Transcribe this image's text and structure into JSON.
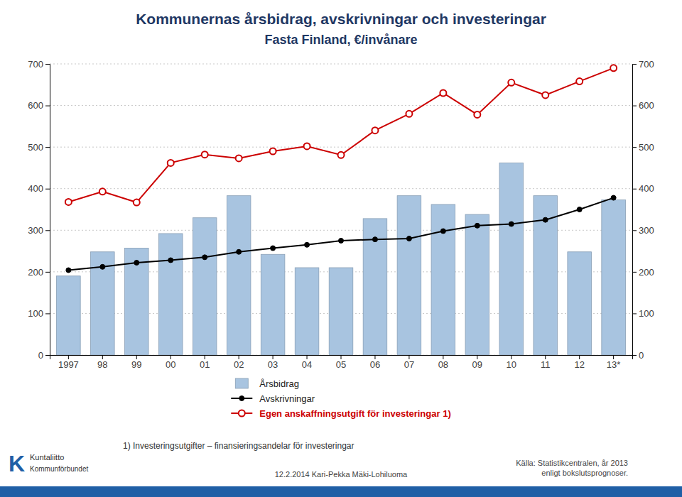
{
  "chart_data": {
    "type": "bar",
    "title": "Kommunernas årsbidrag, avskrivningar och investeringar",
    "subtitle": "Fasta Finland, €/invånare",
    "categories": [
      "1997",
      "98",
      "99",
      "00",
      "01",
      "02",
      "03",
      "04",
      "05",
      "06",
      "07",
      "08",
      "09",
      "10",
      "11",
      "12",
      "13*"
    ],
    "series": [
      {
        "name": "Årsbidrag",
        "type": "bar",
        "color": "#a8c4e0",
        "values": [
          190,
          248,
          257,
          292,
          330,
          383,
          242,
          210,
          210,
          328,
          383,
          362,
          338,
          462,
          383,
          248,
          373
        ]
      },
      {
        "name": "Avskrivningar",
        "type": "line",
        "color": "#000000",
        "marker": "circle",
        "values": [
          204,
          212,
          222,
          228,
          235,
          248,
          257,
          265,
          275,
          278,
          280,
          298,
          311,
          315,
          325,
          350,
          378
        ]
      },
      {
        "name": "Egen anskaffningsutgift för investeringar 1)",
        "type": "line",
        "color": "#cc0000",
        "marker": "circle-open",
        "values": [
          368,
          393,
          367,
          462,
          482,
          473,
          490,
          502,
          481,
          540,
          580,
          630,
          578,
          655,
          625,
          658,
          690
        ]
      }
    ],
    "ylim": [
      0,
      700
    ],
    "yticks": [
      0,
      100,
      200,
      300,
      400,
      500,
      600,
      700
    ],
    "y2lim": [
      0,
      700
    ],
    "y2ticks": [
      0,
      100,
      200,
      300,
      400,
      500,
      600,
      700
    ],
    "grid": true,
    "legend": "bottom",
    "annotations": [
      "1) Investeringsutgifter – finansieringsandelar för investeringar",
      "12.2.2014 Kari-Pekka Mäki-Lohiluoma",
      "Källa: Statistikcentralen, år 2013\nenligt bokslutsprognoser.",
      "K",
      "Kuntaliitto",
      "Kommunförbundet"
    ]
  }
}
